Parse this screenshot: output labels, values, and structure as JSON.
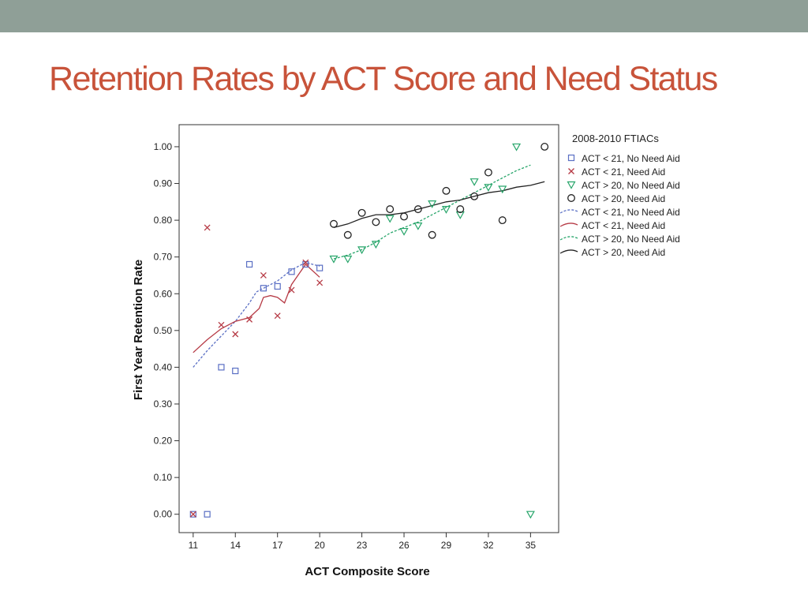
{
  "slide": {
    "title": "Retention Rates by ACT Score and Need Status"
  },
  "colors": {
    "top_bar": "#8f9f97",
    "title": "#c8533a",
    "blue": "#5a6fc4",
    "red": "#b63a45",
    "green": "#27a56a",
    "black": "#222222"
  },
  "chart_data": {
    "type": "scatter",
    "title": "",
    "xlabel": "ACT Composite Score",
    "ylabel": "First Year Retention Rate",
    "xlim": [
      10,
      37
    ],
    "ylim": [
      -0.05,
      1.06
    ],
    "x_ticks": [
      11,
      14,
      17,
      20,
      23,
      26,
      29,
      32,
      35
    ],
    "y_ticks": [
      0.0,
      0.1,
      0.2,
      0.3,
      0.4,
      0.5,
      0.6,
      0.7,
      0.8,
      0.9,
      1.0
    ],
    "y_tick_labels": [
      "0.00",
      "0.10",
      "0.20",
      "0.30",
      "0.40",
      "0.50",
      "0.60",
      "0.70",
      "0.80",
      "0.90",
      "1.00"
    ],
    "grid": false,
    "legend": {
      "title": "2008-2010 FTIACs",
      "position": "right",
      "entries": [
        {
          "label": "ACT < 21, No Need Aid",
          "kind": "marker",
          "series": 0
        },
        {
          "label": "ACT < 21, Need Aid",
          "kind": "marker",
          "series": 1
        },
        {
          "label": "ACT > 20, No Need Aid",
          "kind": "marker",
          "series": 2
        },
        {
          "label": "ACT > 20, Need Aid",
          "kind": "marker",
          "series": 3
        },
        {
          "label": "ACT < 21, No Need Aid",
          "kind": "line",
          "series": 0
        },
        {
          "label": "ACT < 21, Need Aid",
          "kind": "line",
          "series": 1
        },
        {
          "label": "ACT > 20, No Need Aid",
          "kind": "line",
          "series": 2
        },
        {
          "label": "ACT > 20, Need Aid",
          "kind": "line",
          "series": 3
        }
      ]
    },
    "series": [
      {
        "name": "ACT < 21, No Need Aid",
        "marker": "square",
        "color": "#5a6fc4",
        "line_style": "dashed",
        "points": [
          [
            11,
            0.0
          ],
          [
            12,
            0.0
          ],
          [
            13,
            0.4
          ],
          [
            14,
            0.39
          ],
          [
            15,
            0.68
          ],
          [
            16,
            0.615
          ],
          [
            17,
            0.62
          ],
          [
            18,
            0.66
          ],
          [
            19,
            0.68
          ],
          [
            20,
            0.67
          ]
        ],
        "fit_line": [
          [
            11,
            0.4
          ],
          [
            12,
            0.445
          ],
          [
            13,
            0.485
          ],
          [
            14,
            0.525
          ],
          [
            15,
            0.575
          ],
          [
            15.5,
            0.605
          ],
          [
            16,
            0.615
          ],
          [
            17,
            0.635
          ],
          [
            18,
            0.665
          ],
          [
            19,
            0.685
          ],
          [
            20,
            0.675
          ]
        ]
      },
      {
        "name": "ACT < 21, Need Aid",
        "marker": "x",
        "color": "#b63a45",
        "line_style": "solid",
        "points": [
          [
            11,
            0.0
          ],
          [
            12,
            0.78
          ],
          [
            13,
            0.515
          ],
          [
            14,
            0.49
          ],
          [
            15,
            0.53
          ],
          [
            16,
            0.65
          ],
          [
            17,
            0.54
          ],
          [
            18,
            0.61
          ],
          [
            19,
            0.685
          ],
          [
            20,
            0.63
          ]
        ],
        "fit_line": [
          [
            11,
            0.44
          ],
          [
            12,
            0.475
          ],
          [
            13,
            0.505
          ],
          [
            14,
            0.525
          ],
          [
            15,
            0.535
          ],
          [
            15.7,
            0.56
          ],
          [
            16,
            0.59
          ],
          [
            16.5,
            0.595
          ],
          [
            17,
            0.59
          ],
          [
            17.5,
            0.575
          ],
          [
            18,
            0.625
          ],
          [
            19,
            0.68
          ],
          [
            20,
            0.645
          ]
        ]
      },
      {
        "name": "ACT > 20, No Need Aid",
        "marker": "triangle-down",
        "color": "#27a56a",
        "line_style": "dashed",
        "points": [
          [
            21,
            0.695
          ],
          [
            22,
            0.695
          ],
          [
            23,
            0.72
          ],
          [
            24,
            0.735
          ],
          [
            25,
            0.805
          ],
          [
            26,
            0.77
          ],
          [
            27,
            0.785
          ],
          [
            28,
            0.845
          ],
          [
            29,
            0.83
          ],
          [
            30,
            0.815
          ],
          [
            31,
            0.905
          ],
          [
            32,
            0.89
          ],
          [
            33,
            0.885
          ],
          [
            34,
            1.0
          ],
          [
            35,
            0.0
          ]
        ],
        "fit_line": [
          [
            21,
            0.695
          ],
          [
            22,
            0.705
          ],
          [
            23,
            0.72
          ],
          [
            24,
            0.74
          ],
          [
            25,
            0.765
          ],
          [
            26,
            0.78
          ],
          [
            27,
            0.795
          ],
          [
            28,
            0.815
          ],
          [
            29,
            0.835
          ],
          [
            30,
            0.855
          ],
          [
            31,
            0.875
          ],
          [
            32,
            0.895
          ],
          [
            33,
            0.915
          ],
          [
            34,
            0.935
          ],
          [
            35,
            0.95
          ]
        ]
      },
      {
        "name": "ACT > 20, Need Aid",
        "marker": "circle",
        "color": "#222222",
        "line_style": "solid",
        "points": [
          [
            21,
            0.79
          ],
          [
            22,
            0.76
          ],
          [
            23,
            0.82
          ],
          [
            24,
            0.795
          ],
          [
            25,
            0.83
          ],
          [
            26,
            0.81
          ],
          [
            27,
            0.83
          ],
          [
            28,
            0.76
          ],
          [
            29,
            0.88
          ],
          [
            30,
            0.83
          ],
          [
            31,
            0.865
          ],
          [
            32,
            0.93
          ],
          [
            33,
            0.8
          ],
          [
            36,
            1.0
          ]
        ],
        "fit_line": [
          [
            21,
            0.78
          ],
          [
            22,
            0.79
          ],
          [
            23,
            0.805
          ],
          [
            24,
            0.815
          ],
          [
            25,
            0.815
          ],
          [
            26,
            0.82
          ],
          [
            27,
            0.83
          ],
          [
            28,
            0.84
          ],
          [
            29,
            0.85
          ],
          [
            30,
            0.855
          ],
          [
            31,
            0.865
          ],
          [
            32,
            0.875
          ],
          [
            33,
            0.88
          ],
          [
            34,
            0.89
          ],
          [
            35,
            0.895
          ],
          [
            36,
            0.905
          ]
        ]
      }
    ]
  }
}
